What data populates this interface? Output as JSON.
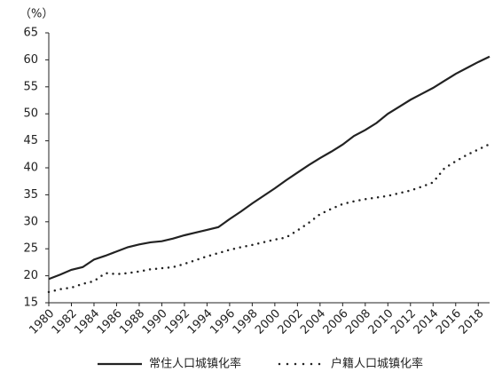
{
  "chart_data": {
    "type": "line",
    "y_label": "（%）",
    "x": [
      1980,
      1981,
      1982,
      1983,
      1984,
      1985,
      1986,
      1987,
      1988,
      1989,
      1990,
      1991,
      1992,
      1993,
      1994,
      1995,
      1996,
      1997,
      1998,
      1999,
      2000,
      2001,
      2002,
      2003,
      2004,
      2005,
      2006,
      2007,
      2008,
      2009,
      2010,
      2011,
      2012,
      2013,
      2014,
      2015,
      2016,
      2017,
      2018,
      2019
    ],
    "series": [
      {
        "name": "常住人口城镇化率",
        "color": "#222222",
        "line_style": "solid",
        "values": [
          19.4,
          20.2,
          21.1,
          21.6,
          23.0,
          23.7,
          24.5,
          25.3,
          25.8,
          26.2,
          26.4,
          26.9,
          27.5,
          28.0,
          28.5,
          29.0,
          30.5,
          31.9,
          33.4,
          34.8,
          36.2,
          37.7,
          39.1,
          40.5,
          41.8,
          43.0,
          44.3,
          45.9,
          47.0,
          48.3,
          50.0,
          51.3,
          52.6,
          53.7,
          54.8,
          56.1,
          57.4,
          58.5,
          59.6,
          60.6
        ]
      },
      {
        "name": "户籍人口城镇化率",
        "color": "#222222",
        "line_style": "dotted",
        "values": [
          17.0,
          17.5,
          17.8,
          18.5,
          19.0,
          20.5,
          20.3,
          20.5,
          20.8,
          21.2,
          21.4,
          21.6,
          22.2,
          22.9,
          23.6,
          24.2,
          24.8,
          25.3,
          25.7,
          26.2,
          26.7,
          27.1,
          28.4,
          29.8,
          31.4,
          32.4,
          33.3,
          33.8,
          34.2,
          34.5,
          34.8,
          35.3,
          35.8,
          36.5,
          37.3,
          39.9,
          41.2,
          42.4,
          43.4,
          44.4
        ]
      }
    ],
    "xlim": [
      1980,
      2019
    ],
    "xticks": [
      1980,
      1982,
      1984,
      1986,
      1988,
      1990,
      1992,
      1994,
      1996,
      1998,
      2000,
      2002,
      2004,
      2006,
      2008,
      2010,
      2012,
      2014,
      2016,
      2018
    ],
    "ylim": [
      15,
      65
    ],
    "yticks": [
      15,
      20,
      25,
      30,
      35,
      40,
      45,
      50,
      55,
      60,
      65
    ],
    "grid": false,
    "legend": "bottom"
  }
}
